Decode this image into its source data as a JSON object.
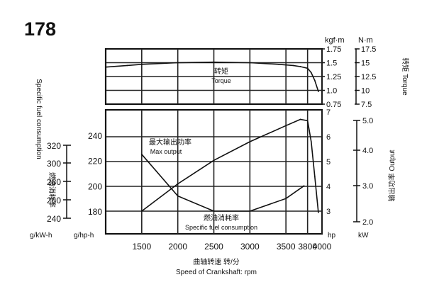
{
  "page_number": "178",
  "chart_data": {
    "type": "line",
    "x": {
      "label_cn": "曲轴转速 转/分",
      "label_en": "Speed of Crankshaft: rpm",
      "range": [
        1000,
        4000
      ],
      "ticks": [
        1500,
        2000,
        2500,
        3000,
        3500,
        3800,
        4000
      ],
      "tick_labels": [
        "1500",
        "2000",
        "2500",
        "3000",
        "3500",
        "3800",
        "4000"
      ]
    },
    "torque_panel": {
      "unit_kgf": "kgf·m",
      "unit_nm": "N·m",
      "kgf_range": [
        0.75,
        1.75
      ],
      "kgf_ticks": [
        "1.75",
        "1.5",
        "1.25",
        "1.0",
        "0.75"
      ],
      "nm_ticks": [
        "17.5",
        "15",
        "12.5",
        "10",
        "7.5"
      ],
      "side_label": "转矩 Torque",
      "curve_label_cn": "转矩",
      "curve_label_en": "Torque",
      "series": {
        "name": "转矩 Torque",
        "x": [
          1000,
          1300,
          1500,
          2000,
          2500,
          3000,
          3400,
          3600,
          3700,
          3800,
          3850,
          3900,
          3950
        ],
        "y": [
          1.42,
          1.45,
          1.47,
          1.5,
          1.51,
          1.5,
          1.47,
          1.45,
          1.43,
          1.4,
          1.32,
          1.18,
          0.98
        ]
      }
    },
    "power_panel": {
      "hp_unit": "hp",
      "hp_range": [
        2.5,
        7
      ],
      "hp_ticks": [
        "7",
        "6",
        "5",
        "4",
        "3"
      ],
      "kw_unit": "kW",
      "kw_ticks": [
        "5.0",
        "4.0",
        "3.0",
        "2.0"
      ],
      "side_label": "输出功率 Output",
      "curve_label_cn": "最大输出功率",
      "curve_label_en": "Max output",
      "series": {
        "name": "最大输出功率 Max output",
        "x": [
          1500,
          2000,
          2500,
          3000,
          3500,
          3700,
          3800,
          3850,
          3900,
          3950
        ],
        "y": [
          3.0,
          4.1,
          5.05,
          5.8,
          6.45,
          6.7,
          6.65,
          5.8,
          4.4,
          2.95
        ]
      }
    },
    "fuel_panel": {
      "side_label": "Specific fuel consumption",
      "g_kwh_unit": "g/kW-h",
      "g_kwh_ticks": [
        "320",
        "300",
        "280",
        "260",
        "240"
      ],
      "g_hph_unit": "g/hp-h",
      "g_hph_ticks": [
        "240",
        "220",
        "200",
        "180"
      ],
      "g_hph_range": [
        170,
        250
      ],
      "label_cn": "燃油消耗率",
      "curve_label_cn": "燃油消耗率",
      "curve_label_en": "Specific fuel consumption",
      "series": {
        "name": "燃油消耗率 Specific fuel consumption",
        "x": [
          1500,
          2000,
          2500,
          3000,
          3500,
          3750
        ],
        "y": [
          225,
          192,
          180,
          180,
          190,
          200
        ]
      }
    }
  }
}
